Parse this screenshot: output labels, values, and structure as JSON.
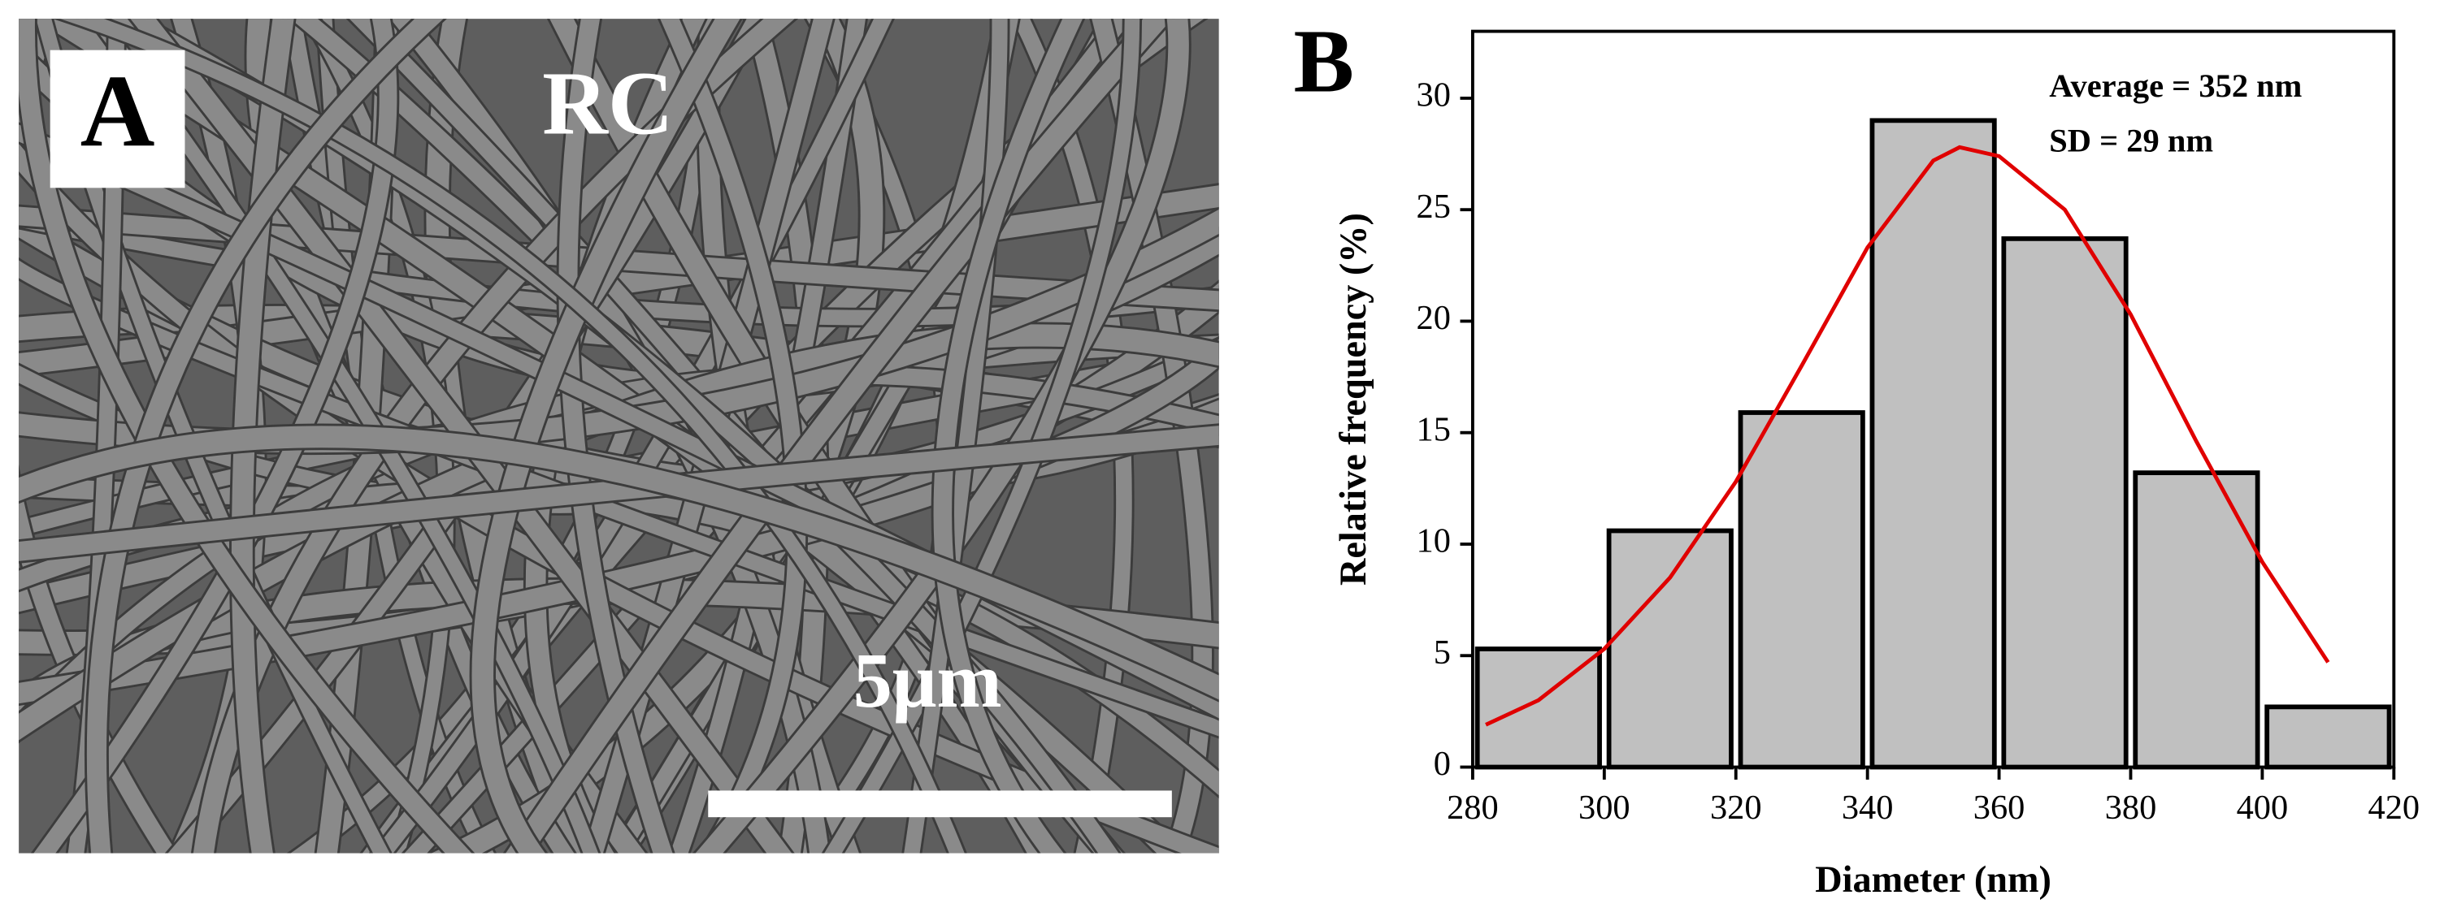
{
  "panel_a": {
    "label": "A",
    "sample": "RC",
    "scale_bar": "5μm"
  },
  "chart_data": {
    "type": "histogram",
    "panel_label": "B",
    "xlabel": "Diameter (nm)",
    "ylabel": "Relative frequency (%)",
    "annotations": [
      "Average = 352 nm",
      "SD = 29 nm"
    ],
    "bins": [
      280,
      300,
      320,
      340,
      360,
      380,
      400,
      420
    ],
    "values": [
      5.3,
      10.6,
      15.9,
      29,
      23.7,
      13.2,
      2.7
    ],
    "color": "#c0c0c0",
    "edgecolor": "#000000",
    "fit": {
      "x": [
        282,
        290,
        300,
        310,
        320,
        330,
        340,
        350,
        354,
        360,
        370,
        380,
        390,
        400,
        410
      ],
      "values": [
        1.9,
        3.0,
        5.3,
        8.5,
        12.8,
        18,
        23.3,
        27.2,
        27.8,
        27.4,
        25,
        20.3,
        14.6,
        9.2,
        4.7
      ],
      "color": "#e00000"
    },
    "xlim": [
      280,
      420
    ],
    "xticks": [
      280,
      300,
      320,
      340,
      360,
      380,
      400,
      420
    ],
    "ylim": [
      0,
      33
    ],
    "yticks": [
      0,
      5,
      10,
      15,
      20,
      25,
      30
    ]
  }
}
